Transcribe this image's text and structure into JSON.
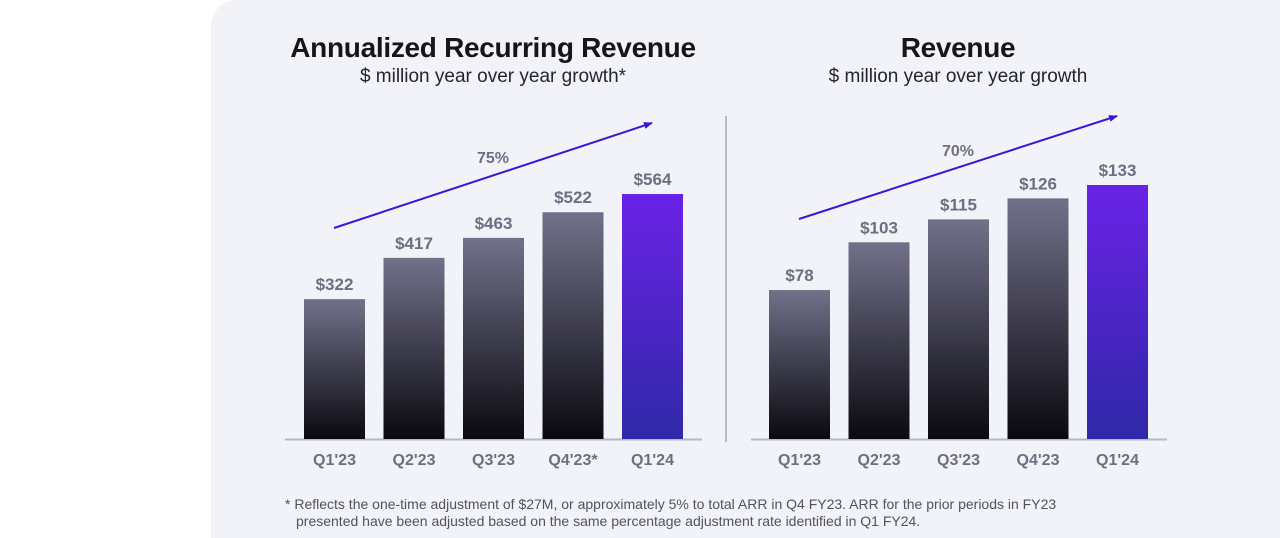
{
  "chart_data": [
    {
      "type": "bar",
      "title": "Annualized Recurring Revenue",
      "subtitle": "$ million year over year growth*",
      "categories": [
        "Q1'23",
        "Q2'23",
        "Q3'23",
        "Q4'23*",
        "Q1'24"
      ],
      "values": [
        322,
        417,
        463,
        522,
        564
      ],
      "value_labels": [
        "$322",
        "$417",
        "$463",
        "$522",
        "$564"
      ],
      "growth_label": "75%",
      "highlight_index": 4,
      "ylim": [
        0,
        600
      ],
      "xlabel": "",
      "ylabel": "",
      "grid": false
    },
    {
      "type": "bar",
      "title": "Revenue",
      "subtitle": "$ million year over year growth",
      "categories": [
        "Q1'23",
        "Q2'23",
        "Q3'23",
        "Q4'23",
        "Q1'24"
      ],
      "values": [
        78,
        103,
        115,
        126,
        133
      ],
      "value_labels": [
        "$78",
        "$103",
        "$115",
        "$126",
        "$133"
      ],
      "growth_label": "70%",
      "highlight_index": 4,
      "ylim": [
        0,
        143
      ],
      "xlabel": "",
      "ylabel": "",
      "grid": false
    }
  ],
  "colors": {
    "bar_dark_top": "#72718a",
    "bar_dark_bottom": "#0a0910",
    "bar_highlight_top": "#6a22e6",
    "bar_highlight_bottom": "#2f28a8",
    "arrow": "#3b16d6",
    "baseline": "#b7b8c3"
  },
  "footnote": {
    "line1": "* Reflects the one-time adjustment of $27M, or approximately 5% to total ARR in Q4 FY23. ARR for the prior periods in FY23",
    "line2": "presented have been adjusted based on the same percentage adjustment rate identified in Q1 FY24."
  }
}
